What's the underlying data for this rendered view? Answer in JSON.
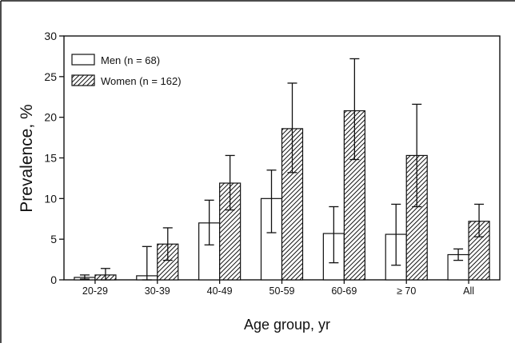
{
  "chart_data": {
    "type": "bar",
    "ylabel": "Prevalence, %",
    "xlabel": "Age group, yr",
    "ylim": [
      0,
      30
    ],
    "y_ticks": [
      0,
      5,
      10,
      15,
      20,
      25,
      30
    ],
    "grid": false,
    "legend_placement": "top-left",
    "categories": [
      "20-29",
      "30-39",
      "40-49",
      "50-59",
      "60-69",
      "≥ 70",
      "All"
    ],
    "series": [
      {
        "name": "Men (n = 68)",
        "fill": "white",
        "values": [
          0.3,
          0.5,
          7.0,
          10.0,
          5.7,
          5.6,
          3.1
        ],
        "error_low": [
          0.1,
          0.0,
          4.3,
          5.8,
          2.1,
          1.8,
          2.4
        ],
        "error_high": [
          0.6,
          4.1,
          9.8,
          13.5,
          9.0,
          9.3,
          3.8
        ]
      },
      {
        "name": "Women (n = 162)",
        "fill": "hatched",
        "values": [
          0.6,
          4.4,
          11.9,
          18.6,
          20.8,
          15.3,
          7.2
        ],
        "error_low": [
          0.0,
          2.4,
          8.6,
          13.2,
          14.8,
          9.0,
          5.3
        ],
        "error_high": [
          1.4,
          6.4,
          15.3,
          24.2,
          27.2,
          21.6,
          9.3
        ]
      }
    ]
  }
}
